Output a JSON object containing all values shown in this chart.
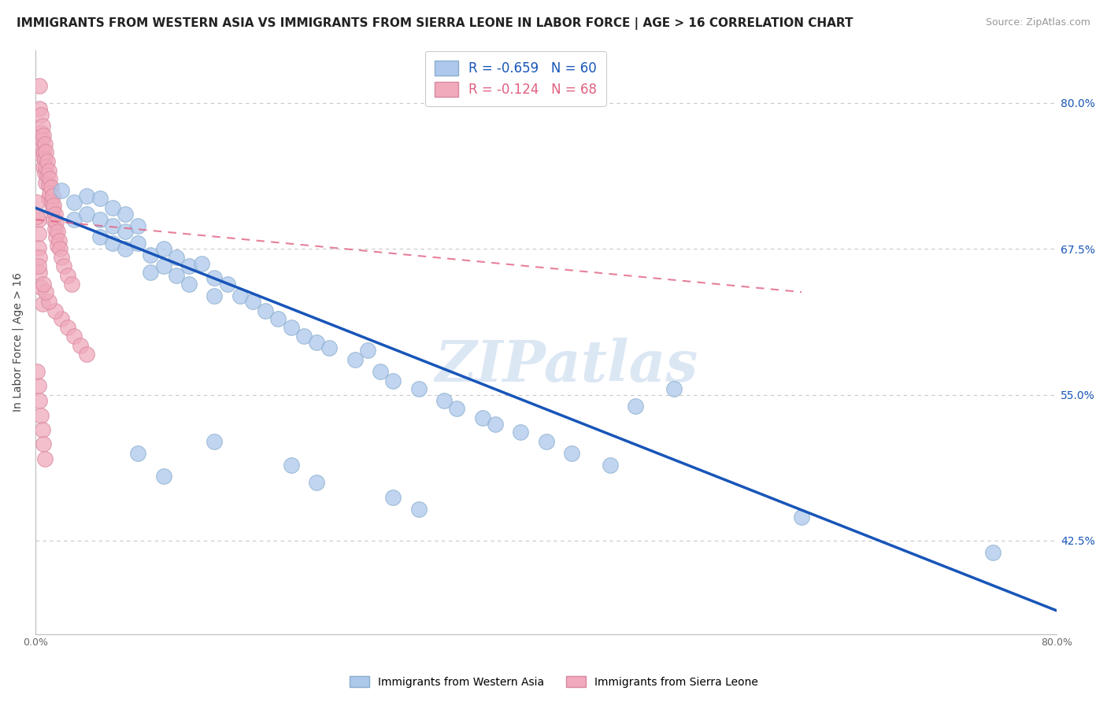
{
  "title": "IMMIGRANTS FROM WESTERN ASIA VS IMMIGRANTS FROM SIERRA LEONE IN LABOR FORCE | AGE > 16 CORRELATION CHART",
  "source": "Source: ZipAtlas.com",
  "ylabel": "In Labor Force | Age > 16",
  "x_min": 0.0,
  "x_max": 0.8,
  "y_min": 0.345,
  "y_max": 0.845,
  "legend_blue_r": "R = -0.659",
  "legend_blue_n": "N = 60",
  "legend_pink_r": "R = -0.124",
  "legend_pink_n": "N = 68",
  "legend_label_blue": "Immigrants from Western Asia",
  "legend_label_pink": "Immigrants from Sierra Leone",
  "watermark": "ZIPatlas",
  "blue_scatter": [
    [
      0.02,
      0.725
    ],
    [
      0.03,
      0.715
    ],
    [
      0.03,
      0.7
    ],
    [
      0.04,
      0.72
    ],
    [
      0.04,
      0.705
    ],
    [
      0.05,
      0.718
    ],
    [
      0.05,
      0.7
    ],
    [
      0.05,
      0.685
    ],
    [
      0.06,
      0.71
    ],
    [
      0.06,
      0.695
    ],
    [
      0.06,
      0.68
    ],
    [
      0.07,
      0.705
    ],
    [
      0.07,
      0.69
    ],
    [
      0.07,
      0.675
    ],
    [
      0.08,
      0.695
    ],
    [
      0.08,
      0.68
    ],
    [
      0.09,
      0.67
    ],
    [
      0.09,
      0.655
    ],
    [
      0.1,
      0.675
    ],
    [
      0.1,
      0.66
    ],
    [
      0.11,
      0.668
    ],
    [
      0.11,
      0.652
    ],
    [
      0.12,
      0.66
    ],
    [
      0.12,
      0.645
    ],
    [
      0.13,
      0.662
    ],
    [
      0.14,
      0.65
    ],
    [
      0.14,
      0.635
    ],
    [
      0.15,
      0.645
    ],
    [
      0.16,
      0.635
    ],
    [
      0.17,
      0.63
    ],
    [
      0.18,
      0.622
    ],
    [
      0.19,
      0.615
    ],
    [
      0.2,
      0.608
    ],
    [
      0.21,
      0.6
    ],
    [
      0.22,
      0.595
    ],
    [
      0.23,
      0.59
    ],
    [
      0.25,
      0.58
    ],
    [
      0.27,
      0.57
    ],
    [
      0.28,
      0.562
    ],
    [
      0.3,
      0.555
    ],
    [
      0.32,
      0.545
    ],
    [
      0.33,
      0.538
    ],
    [
      0.35,
      0.53
    ],
    [
      0.36,
      0.525
    ],
    [
      0.38,
      0.518
    ],
    [
      0.4,
      0.51
    ],
    [
      0.42,
      0.5
    ],
    [
      0.45,
      0.49
    ],
    [
      0.47,
      0.54
    ],
    [
      0.5,
      0.555
    ],
    [
      0.2,
      0.49
    ],
    [
      0.22,
      0.475
    ],
    [
      0.14,
      0.51
    ],
    [
      0.1,
      0.48
    ],
    [
      0.08,
      0.5
    ],
    [
      0.6,
      0.445
    ],
    [
      0.75,
      0.415
    ],
    [
      0.28,
      0.462
    ],
    [
      0.3,
      0.452
    ],
    [
      0.26,
      0.588
    ]
  ],
  "pink_scatter": [
    [
      0.003,
      0.815
    ],
    [
      0.003,
      0.795
    ],
    [
      0.004,
      0.79
    ],
    [
      0.004,
      0.775
    ],
    [
      0.004,
      0.762
    ],
    [
      0.005,
      0.78
    ],
    [
      0.005,
      0.768
    ],
    [
      0.005,
      0.755
    ],
    [
      0.006,
      0.772
    ],
    [
      0.006,
      0.758
    ],
    [
      0.006,
      0.745
    ],
    [
      0.007,
      0.765
    ],
    [
      0.007,
      0.752
    ],
    [
      0.007,
      0.74
    ],
    [
      0.008,
      0.758
    ],
    [
      0.008,
      0.745
    ],
    [
      0.008,
      0.732
    ],
    [
      0.009,
      0.75
    ],
    [
      0.009,
      0.738
    ],
    [
      0.01,
      0.742
    ],
    [
      0.01,
      0.73
    ],
    [
      0.01,
      0.718
    ],
    [
      0.011,
      0.735
    ],
    [
      0.011,
      0.722
    ],
    [
      0.012,
      0.728
    ],
    [
      0.012,
      0.715
    ],
    [
      0.013,
      0.72
    ],
    [
      0.013,
      0.708
    ],
    [
      0.014,
      0.712
    ],
    [
      0.014,
      0.7
    ],
    [
      0.015,
      0.705
    ],
    [
      0.015,
      0.692
    ],
    [
      0.016,
      0.698
    ],
    [
      0.016,
      0.685
    ],
    [
      0.017,
      0.69
    ],
    [
      0.017,
      0.678
    ],
    [
      0.018,
      0.682
    ],
    [
      0.019,
      0.675
    ],
    [
      0.02,
      0.668
    ],
    [
      0.022,
      0.66
    ],
    [
      0.025,
      0.652
    ],
    [
      0.028,
      0.645
    ],
    [
      0.002,
      0.7
    ],
    [
      0.002,
      0.688
    ],
    [
      0.002,
      0.676
    ],
    [
      0.001,
      0.715
    ],
    [
      0.001,
      0.703
    ],
    [
      0.003,
      0.668
    ],
    [
      0.003,
      0.655
    ],
    [
      0.004,
      0.642
    ],
    [
      0.005,
      0.628
    ],
    [
      0.002,
      0.558
    ],
    [
      0.003,
      0.545
    ],
    [
      0.004,
      0.532
    ],
    [
      0.005,
      0.52
    ],
    [
      0.001,
      0.57
    ],
    [
      0.006,
      0.508
    ],
    [
      0.007,
      0.495
    ],
    [
      0.02,
      0.615
    ],
    [
      0.015,
      0.622
    ],
    [
      0.01,
      0.63
    ],
    [
      0.008,
      0.638
    ],
    [
      0.006,
      0.645
    ],
    [
      0.025,
      0.608
    ],
    [
      0.03,
      0.6
    ],
    [
      0.035,
      0.592
    ],
    [
      0.04,
      0.585
    ],
    [
      0.002,
      0.66
    ]
  ],
  "blue_trendline_x": [
    0.0,
    0.8
  ],
  "blue_trendline_y": [
    0.71,
    0.365
  ],
  "pink_trendline_x": [
    0.0,
    0.6
  ],
  "pink_trendline_y": [
    0.7,
    0.638
  ],
  "scatter_size": 200,
  "blue_color": "#adc8eb",
  "blue_edge": "#8aaece",
  "pink_color": "#f0aabb",
  "pink_edge": "#d888a0",
  "blue_line_color": "#1855b8",
  "pink_line_color": "#e06080",
  "background_color": "#ffffff",
  "grid_color": "#c8c8c8",
  "title_fontsize": 11,
  "source_fontsize": 9,
  "axis_label_fontsize": 10,
  "tick_fontsize": 9,
  "legend_fontsize": 12,
  "watermark_fontsize": 52,
  "yticks": [
    0.425,
    0.55,
    0.675,
    0.8
  ],
  "ytick_labels": [
    "42.5%",
    "55.0%",
    "67.5%",
    "80.0%"
  ]
}
